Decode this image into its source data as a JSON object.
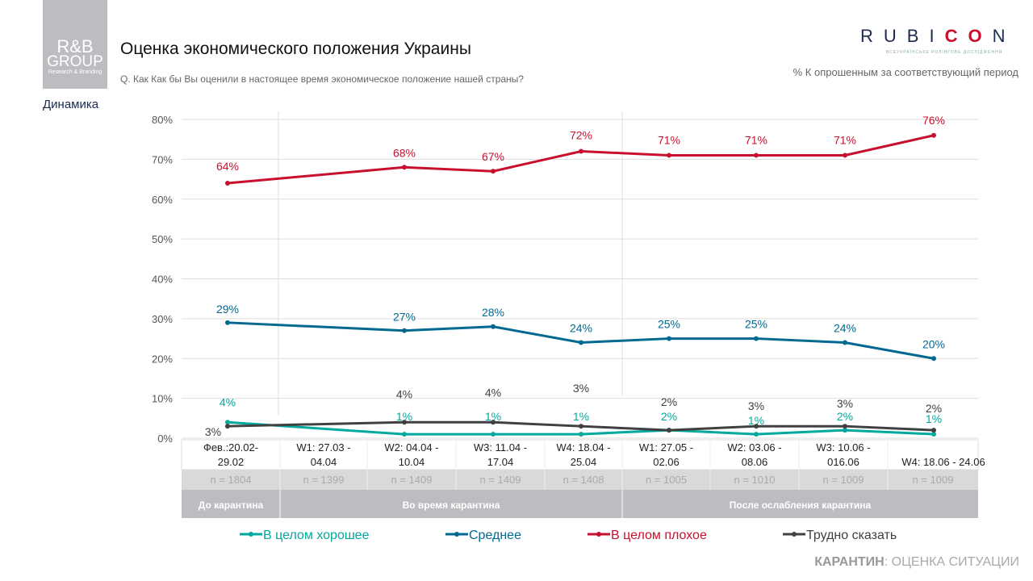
{
  "header": {
    "logo_text": [
      "R&B",
      "GROUP",
      "Research & Branding"
    ],
    "title": "Оценка экономического положения Украины",
    "question": "Q. Как Как бы Вы оценили в настоящее время экономическое положение нашей страны?",
    "section": "Динамика",
    "brand": "RUBICON",
    "brand_sub": "ВСЕУКРАЇНСЬКЕ РОЛІНГОВЕ ДОСЛІДЖЕННЯ",
    "note": "% К опрошенным за соответствующий период"
  },
  "footer": {
    "bold": "КАРАНТИН",
    "rest": ": ОЦЕНКА СИТУАЦИИ"
  },
  "chart_data": {
    "type": "line",
    "ylim": [
      0,
      80
    ],
    "yticks": [
      "0%",
      "10%",
      "20%",
      "30%",
      "40%",
      "50%",
      "60%",
      "70%",
      "80%"
    ],
    "categories": [
      "Фев.:20.02- 29.02",
      "W1: 27.03 - 04.04",
      "W2: 04.04 - 10.04",
      "W3: 11.04 - 17.04",
      "W4: 18.04 - 25.04",
      "W1: 27.05 - 02.06",
      "W2: 03.06 - 08.06",
      "W3: 10.06 - 016.06",
      "W4: 18.06 -   24.06"
    ],
    "sample_sizes": [
      "n = 1804",
      "n = 1399",
      "n = 1409",
      "n = 1409",
      "n = 1408",
      "n = 1005",
      "n = 1010",
      "n = 1009",
      "n = 1009"
    ],
    "periods": [
      {
        "label": "До карантина",
        "span": 1
      },
      {
        "label": "Во время карантина",
        "span": 4
      },
      {
        "label": "После ослабления карантина",
        "span": 4
      }
    ],
    "grid": true,
    "legend": "bottom",
    "series": [
      {
        "name": "В целом хорошее",
        "color": "#00a99d",
        "values": [
          4,
          null,
          1,
          1,
          1,
          2,
          1,
          2,
          1
        ]
      },
      {
        "name": "Среднее",
        "color": "#006990",
        "values": [
          29,
          null,
          27,
          28,
          24,
          25,
          25,
          24,
          20
        ]
      },
      {
        "name": "В целом плохое",
        "color": "#c8102e",
        "values": [
          64,
          null,
          68,
          67,
          72,
          71,
          71,
          71,
          76
        ]
      },
      {
        "name": "Трудно сказать",
        "color": "#404040",
        "values": [
          3,
          null,
          4,
          4,
          3,
          2,
          3,
          3,
          2
        ]
      }
    ]
  }
}
